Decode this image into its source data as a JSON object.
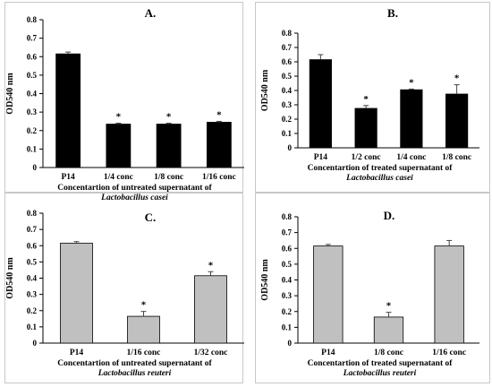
{
  "chart_data": [
    {
      "type": "bar",
      "title": "A.",
      "ylabel": "OD540 nm",
      "xlabel": "Concentartion  of  untreated supernatant  of",
      "xlabel_species": "Lactobacillus casei",
      "categories": [
        "P14",
        "1/4 conc",
        "1/8 conc",
        "1/16 conc"
      ],
      "values": [
        0.615,
        0.235,
        0.235,
        0.245
      ],
      "errors": [
        0.01,
        0.005,
        0.005,
        0.005
      ],
      "significant": [
        "",
        "*",
        "*",
        "*"
      ],
      "ylim": [
        0,
        0.8
      ],
      "yticks": [
        "0",
        "0.1",
        "0.2",
        "0.3",
        "0.4",
        "0.5",
        "0.6",
        "0.7",
        "0.8"
      ],
      "bar_color": "#000000",
      "grid": false
    },
    {
      "type": "bar",
      "title": "B.",
      "ylabel": "OD540 nm",
      "xlabel": "Concentartion  of treated supernatant  of",
      "xlabel_species": "Lactobacillus casei",
      "categories": [
        "P14",
        "1/2 conc",
        "1/4 conc",
        "1/8 conc"
      ],
      "values": [
        0.615,
        0.275,
        0.405,
        0.375
      ],
      "errors": [
        0.035,
        0.02,
        0.005,
        0.065
      ],
      "significant": [
        "",
        "*",
        "*",
        "*"
      ],
      "ylim": [
        0,
        0.8
      ],
      "yticks": [
        "0",
        "0.1",
        "0.2",
        "0.3",
        "0.4",
        "0.5",
        "0.6",
        "0.7",
        "0.8"
      ],
      "bar_color": "#000000",
      "grid": false
    },
    {
      "type": "bar",
      "title": "C.",
      "ylabel": "OD540 nm",
      "xlabel": "Concentartion  of  untreated supernatant  of",
      "xlabel_species": "Lactobacillus reuteri",
      "categories": [
        "P14",
        "1/16 conc",
        "1/32 conc"
      ],
      "values": [
        0.615,
        0.165,
        0.415
      ],
      "errors": [
        0.01,
        0.03,
        0.025
      ],
      "significant": [
        "",
        "*",
        "*"
      ],
      "ylim": [
        0,
        0.8
      ],
      "yticks": [
        "0",
        "0.1",
        "0.2",
        "0.3",
        "0.4",
        "0.5",
        "0.6",
        "0.7",
        "0.8"
      ],
      "bar_color": "#c0c0c0",
      "grid": false
    },
    {
      "type": "bar",
      "title": "D.",
      "ylabel": "OD540 nm",
      "xlabel": "Concentartion  of treated supernatant  of",
      "xlabel_species": "Lactobacillus reuteri",
      "categories": [
        "P14",
        "1/8 conc",
        "1/16 conc"
      ],
      "values": [
        0.615,
        0.165,
        0.615
      ],
      "errors": [
        0.01,
        0.03,
        0.035
      ],
      "significant": [
        "",
        "*",
        ""
      ],
      "ylim": [
        0,
        0.8
      ],
      "yticks": [
        "0",
        "0.1",
        "0.2",
        "0.3",
        "0.4",
        "0.5",
        "0.6",
        "0.7",
        "0.8"
      ],
      "bar_color": "#c0c0c0",
      "grid": false
    }
  ]
}
